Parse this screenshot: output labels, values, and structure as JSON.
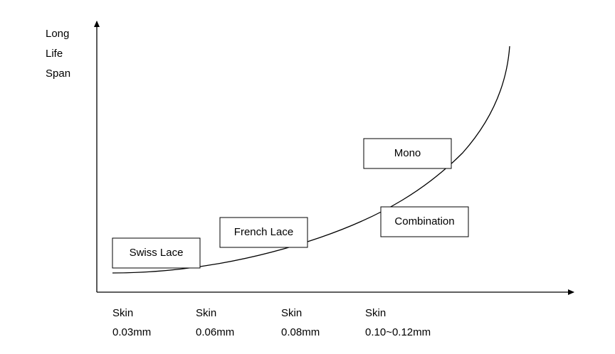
{
  "y_axis_label": [
    "Long",
    "Life",
    "Span"
  ],
  "x_labels": [
    {
      "line1": "Skin",
      "line2": "0.03mm"
    },
    {
      "line1": "Skin",
      "line2": "0.06mm"
    },
    {
      "line1": "Skin",
      "line2": "0.08mm"
    },
    {
      "line1": "Skin",
      "line2": "0.10~0.12mm"
    }
  ],
  "boxes": [
    "Swiss Lace",
    "French Lace",
    "Mono",
    "Combination"
  ]
}
